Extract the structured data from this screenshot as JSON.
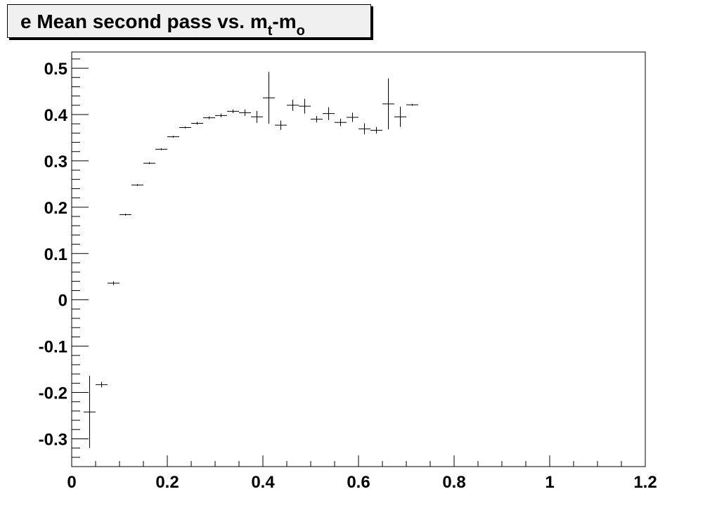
{
  "title": {
    "prefix": "e Mean second pass vs. m",
    "sub1": "t",
    "middle": "-m",
    "sub2": "o"
  },
  "colors": {
    "background": "#ffffff",
    "title_box": "#f0f0f0",
    "ink": "#000000"
  },
  "chart_data": {
    "type": "scatter",
    "title": "e Mean second pass vs. m_t-m_o",
    "xlabel": "",
    "ylabel": "",
    "xlim": [
      0,
      1.2
    ],
    "ylim": [
      -0.36,
      0.535
    ],
    "grid": false,
    "legend": "none",
    "x_ticks": [
      "0",
      "0.2",
      "0.4",
      "0.6",
      "0.8",
      "1",
      "1.2"
    ],
    "y_ticks": [
      "-0.3",
      "-0.2",
      "-0.1",
      "0",
      "0.1",
      "0.2",
      "0.3",
      "0.4",
      "0.5"
    ],
    "x_bin_half_width": 0.0125,
    "points": [
      {
        "x": 0.0375,
        "y": -0.242,
        "yerr": 0.078
      },
      {
        "x": 0.0625,
        "y": -0.183,
        "yerr": 0.006
      },
      {
        "x": 0.0875,
        "y": 0.036,
        "yerr": 0.004
      },
      {
        "x": 0.1125,
        "y": 0.184,
        "yerr": 0.002
      },
      {
        "x": 0.1375,
        "y": 0.248,
        "yerr": 0.002
      },
      {
        "x": 0.1625,
        "y": 0.295,
        "yerr": 0.002
      },
      {
        "x": 0.1875,
        "y": 0.325,
        "yerr": 0.002
      },
      {
        "x": 0.2125,
        "y": 0.352,
        "yerr": 0.002
      },
      {
        "x": 0.2375,
        "y": 0.372,
        "yerr": 0.002
      },
      {
        "x": 0.2625,
        "y": 0.381,
        "yerr": 0.003
      },
      {
        "x": 0.2875,
        "y": 0.393,
        "yerr": 0.003
      },
      {
        "x": 0.3125,
        "y": 0.398,
        "yerr": 0.004
      },
      {
        "x": 0.3375,
        "y": 0.407,
        "yerr": 0.004
      },
      {
        "x": 0.3625,
        "y": 0.404,
        "yerr": 0.007
      },
      {
        "x": 0.3875,
        "y": 0.395,
        "yerr": 0.013
      },
      {
        "x": 0.4125,
        "y": 0.436,
        "yerr": 0.056
      },
      {
        "x": 0.4375,
        "y": 0.377,
        "yerr": 0.01
      },
      {
        "x": 0.4625,
        "y": 0.42,
        "yerr": 0.012
      },
      {
        "x": 0.4875,
        "y": 0.418,
        "yerr": 0.016
      },
      {
        "x": 0.5125,
        "y": 0.39,
        "yerr": 0.007
      },
      {
        "x": 0.5375,
        "y": 0.402,
        "yerr": 0.014
      },
      {
        "x": 0.5625,
        "y": 0.383,
        "yerr": 0.008
      },
      {
        "x": 0.5875,
        "y": 0.394,
        "yerr": 0.01
      },
      {
        "x": 0.6125,
        "y": 0.369,
        "yerr": 0.012
      },
      {
        "x": 0.6375,
        "y": 0.366,
        "yerr": 0.007
      },
      {
        "x": 0.6625,
        "y": 0.423,
        "yerr": 0.055
      },
      {
        "x": 0.6875,
        "y": 0.395,
        "yerr": 0.022
      },
      {
        "x": 0.7125,
        "y": 0.421,
        "yerr": 0.002
      }
    ]
  }
}
